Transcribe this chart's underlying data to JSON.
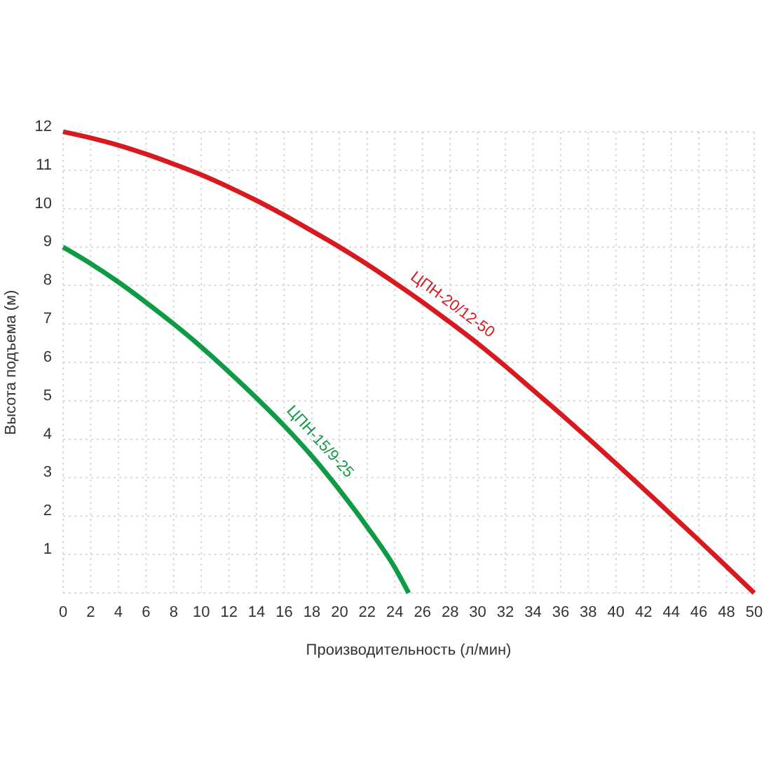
{
  "chart_data": {
    "type": "line",
    "xlabel": "Производительность (л/мин)",
    "ylabel": "Высота подъема (м)",
    "xlim": [
      0,
      50
    ],
    "xticks": [
      0,
      2,
      4,
      6,
      8,
      10,
      12,
      14,
      16,
      18,
      20,
      22,
      24,
      26,
      28,
      30,
      32,
      34,
      36,
      38,
      40,
      42,
      44,
      46,
      48,
      50
    ],
    "ylim": [
      0,
      12
    ],
    "yticks": [
      {
        "value": 0,
        "label": null
      },
      1,
      2,
      3,
      4,
      5,
      6,
      7,
      8,
      9,
      10,
      11,
      12
    ],
    "grid": true,
    "series": [
      {
        "name": "ЦПН-20/12-50",
        "color": "#d71920",
        "x": [
          0,
          2,
          4,
          6,
          8,
          10,
          12,
          14,
          16,
          18,
          20,
          22,
          24,
          26,
          28,
          30,
          32,
          34,
          36,
          38,
          40,
          42,
          44,
          46,
          48,
          50
        ],
        "values": [
          12,
          11.84,
          11.65,
          11.42,
          11.16,
          10.88,
          10.56,
          10.21,
          9.83,
          9.42,
          9.0,
          8.55,
          8.07,
          7.57,
          7.04,
          6.49,
          5.9,
          5.28,
          4.66,
          4.02,
          3.37,
          2.71,
          2.04,
          1.37,
          0.69,
          0
        ]
      },
      {
        "name": "ЦПН-15/9-25",
        "color": "#0f9a46",
        "x": [
          0,
          2,
          4,
          6,
          8,
          10,
          12,
          14,
          16,
          18,
          20,
          22,
          24,
          25
        ],
        "values": [
          9,
          8.57,
          8.09,
          7.56,
          7.0,
          6.4,
          5.75,
          5.07,
          4.35,
          3.56,
          2.68,
          1.72,
          0.66,
          0
        ]
      }
    ]
  }
}
